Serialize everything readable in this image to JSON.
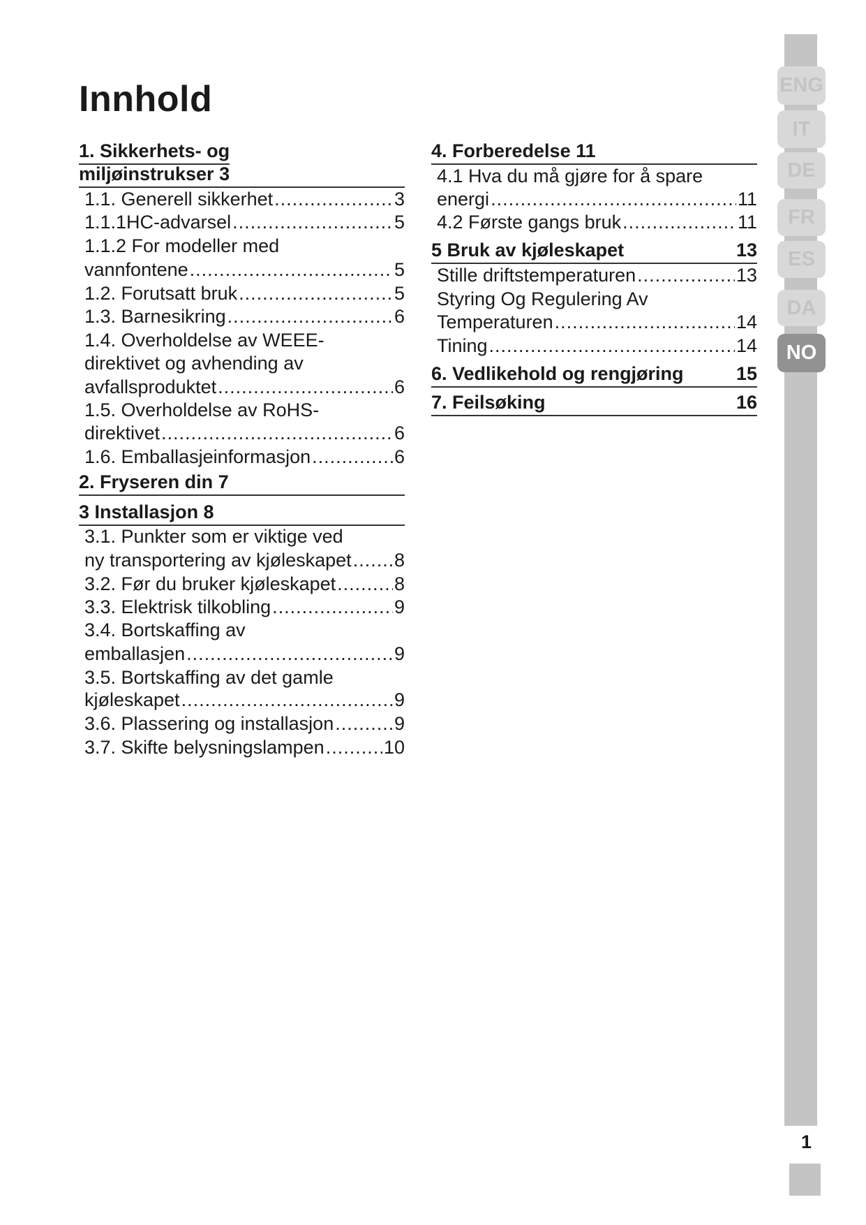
{
  "title": "Innhold",
  "toc": {
    "left": [
      {
        "text": "1.  Sikkerhets- og",
        "type": "heading-partial"
      },
      {
        "text": "miljøinstrukser  3",
        "type": "heading"
      },
      {
        "text": "1.1.   Generell sikkerhet",
        "page": "3"
      },
      {
        "text": "1.1.1HC-advarsel",
        "page": "5"
      },
      {
        "text": "1.1.2 For modeller med"
      },
      {
        "text": "vannfontene",
        "page": "5"
      },
      {
        "text": "1.2.  Forutsatt bruk",
        "page": "5"
      },
      {
        "text": "1.3.  Barnesikring",
        "page": "6"
      },
      {
        "text": "1.4.  Overholdelse av WEEE-"
      },
      {
        "text": "direktivet og avhending av"
      },
      {
        "text": "avfallsproduktet",
        "page": "6"
      },
      {
        "text": "1.5.  Overholdelse av RoHS-"
      },
      {
        "text": "direktivet",
        "page": "6"
      },
      {
        "text": "1.6.  Emballasjeinformasjon",
        "page": "6"
      },
      {
        "text": "2.  Fryseren din  7",
        "type": "heading"
      },
      {
        "text": "3  Installasjon  8",
        "type": "heading"
      },
      {
        "text": "3.1.  Punkter som er viktige ved"
      },
      {
        "text": "ny transportering av kjøleskapet",
        "page": "8"
      },
      {
        "text": "3.2.  Før du bruker kjøleskapet",
        "page": "8"
      },
      {
        "text": "3.3.  Elektrisk tilkobling",
        "page": "9"
      },
      {
        "text": "3.4.  Bortskaffing av"
      },
      {
        "text": "emballasjen",
        "page": "9"
      },
      {
        "text": "3.5.  Bortskaffing av det gamle"
      },
      {
        "text": "kjøleskapet",
        "page": "9"
      },
      {
        "text": "3.6.  Plassering og installasjon",
        "page": "9"
      },
      {
        "text": "3.7.  Skifte belysningslampen",
        "page": "10"
      }
    ],
    "right": [
      {
        "text": "4.  Forberedelse  11",
        "type": "heading"
      },
      {
        "text": "4.1  Hva du må gjøre for å spare"
      },
      {
        "text": "energi",
        "page": "11"
      },
      {
        "text": "4.2  Første gangs bruk",
        "page": "11"
      },
      {
        "text": "5  Bruk av kjøleskapet",
        "page": "13",
        "type": "heading"
      },
      {
        "text": "Stille driftstemperaturen",
        "page": "13"
      },
      {
        "text": "Styring Og Regulering Av"
      },
      {
        "text": "Temperaturen",
        "page": "14"
      },
      {
        "text": "Tining",
        "page": "14"
      },
      {
        "text": "6.  Vedlikehold og rengjøring",
        "page": "15",
        "type": "heading"
      },
      {
        "text": "7.  Feilsøking",
        "page": "16",
        "type": "heading"
      }
    ]
  },
  "language_tabs": [
    {
      "label": "ENG",
      "active": false
    },
    {
      "label": "IT",
      "active": false
    },
    {
      "label": "DE",
      "active": false
    },
    {
      "label": "FR",
      "active": false
    },
    {
      "label": "ES",
      "active": false
    },
    {
      "label": "DA",
      "active": false
    },
    {
      "label": "NO",
      "active": true
    }
  ],
  "page_number": "1",
  "colors": {
    "tab_active": "#929292",
    "tab_inactive": "#d8d8d8",
    "sidebar": "#c4c4c4"
  }
}
